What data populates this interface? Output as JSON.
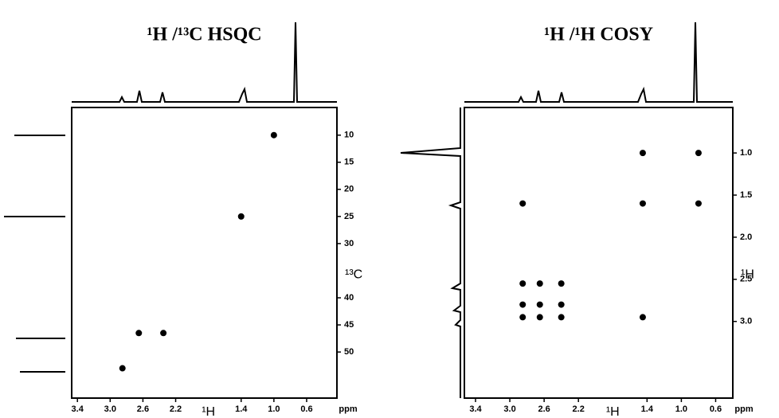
{
  "chart_data": [
    {
      "type": "scatter",
      "title": "¹H /¹³C HSQC",
      "xlabel": "¹H",
      "x_unit": "ppm",
      "ylabel": "¹³C",
      "x": [
        1.0,
        1.4,
        2.65,
        2.35,
        2.85
      ],
      "y": [
        10,
        25,
        46.5,
        46.5,
        53
      ],
      "color": "#000000",
      "xlim": [
        3.47,
        0.23
      ],
      "xticks": [
        3.4,
        {
          "value": 3,
          "label": "3.0"
        },
        2.6,
        2.2,
        1.4,
        {
          "value": 1,
          "label": "1.0"
        },
        0.6
      ],
      "ylim": [
        4.9,
        58.5
      ],
      "yticks": [
        10,
        15,
        20,
        25,
        30,
        40,
        45,
        50
      ]
    },
    {
      "type": "scatter",
      "title": "¹H /¹H COSY",
      "xlabel": "¹H",
      "x_unit": "ppm",
      "ylabel": "¹H",
      "x": [
        1.45,
        0.8,
        2.85,
        1.45,
        0.8,
        2.85,
        2.65,
        2.4,
        2.85,
        2.65,
        2.4,
        2.85,
        2.65,
        2.4,
        1.45
      ],
      "y": [
        1.0,
        1.0,
        1.6,
        1.6,
        1.6,
        2.55,
        2.55,
        2.55,
        2.8,
        2.8,
        2.8,
        2.95,
        2.95,
        2.95,
        2.95
      ],
      "color": "#000000",
      "xlim": [
        3.53,
        0.4
      ],
      "xticks": [
        3.4,
        {
          "value": 3,
          "label": "3.0"
        },
        2.6,
        2.2,
        1.4,
        {
          "value": 1,
          "label": "1.0"
        },
        0.6
      ],
      "ylim": [
        0.46,
        3.91
      ],
      "yticks": [
        {
          "value": 1,
          "label": "1.0"
        },
        1.5,
        {
          "value": 2,
          "label": "2.0"
        },
        2.5,
        {
          "value": 3,
          "label": "3.0"
        }
      ]
    }
  ]
}
